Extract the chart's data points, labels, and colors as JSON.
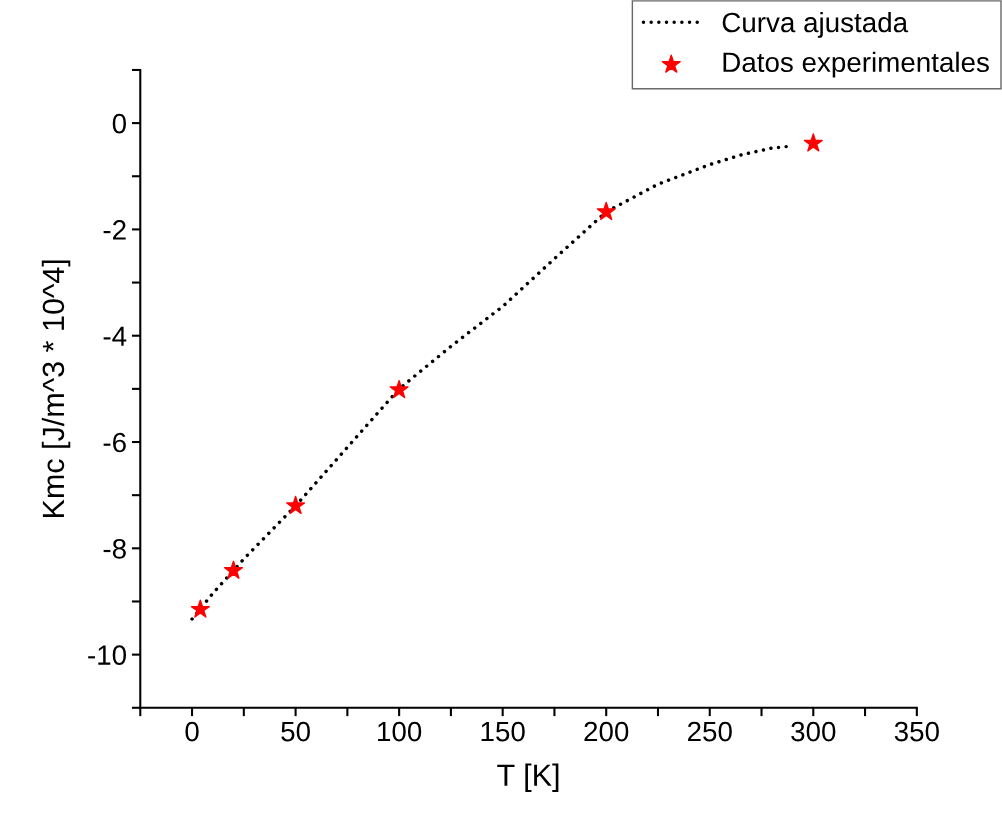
{
  "chart_data": {
    "type": "scatter",
    "xlabel": "T [K]",
    "ylabel": "Kmc [J/m^3 * 10^4]",
    "xlim": [
      -25,
      350
    ],
    "ylim": [
      -11,
      1
    ],
    "xticks": [
      {
        "value": -25,
        "label": null
      },
      0,
      {
        "value": 25,
        "label": null
      },
      50,
      {
        "value": 75,
        "label": null
      },
      100,
      {
        "value": 125,
        "label": null
      },
      150,
      {
        "value": 175,
        "label": null
      },
      200,
      {
        "value": 225,
        "label": null
      },
      250,
      {
        "value": 275,
        "label": null
      },
      300,
      {
        "value": 325,
        "label": null
      },
      350
    ],
    "yticks": [
      {
        "value": -11,
        "label": null
      },
      {
        "value": -10,
        "label": "-10"
      },
      {
        "value": -9,
        "label": null
      },
      {
        "value": -8,
        "label": "-8"
      },
      {
        "value": -7,
        "label": null
      },
      {
        "value": -6,
        "label": "-6"
      },
      {
        "value": -5,
        "label": null
      },
      {
        "value": -4,
        "label": "-4"
      },
      {
        "value": -3,
        "label": null
      },
      {
        "value": -2,
        "label": "-2"
      },
      {
        "value": -1,
        "label": null
      },
      0,
      {
        "value": 1,
        "label": null
      }
    ],
    "grid": false,
    "legend": "top right",
    "series": [
      {
        "name": "Curva ajustada",
        "type": "line",
        "line_style": "dotted",
        "color": "#000000",
        "x": [
          0,
          10,
          25,
          50,
          75,
          100,
          125,
          150,
          175,
          200,
          225,
          250,
          265,
          280,
          290
        ],
        "values": [
          -9.33,
          -8.85,
          -8.2,
          -7.2,
          -6.1,
          -5.0,
          -4.2,
          -3.45,
          -2.55,
          -1.67,
          -1.15,
          -0.78,
          -0.6,
          -0.47,
          -0.43
        ]
      },
      {
        "name": "Datos experimentales",
        "marker": "star",
        "color": "#ff0000",
        "x": [
          4,
          20,
          50,
          100,
          200,
          300
        ],
        "values": [
          -9.15,
          -8.42,
          -7.2,
          -5.02,
          -1.67,
          -0.38
        ]
      }
    ]
  }
}
